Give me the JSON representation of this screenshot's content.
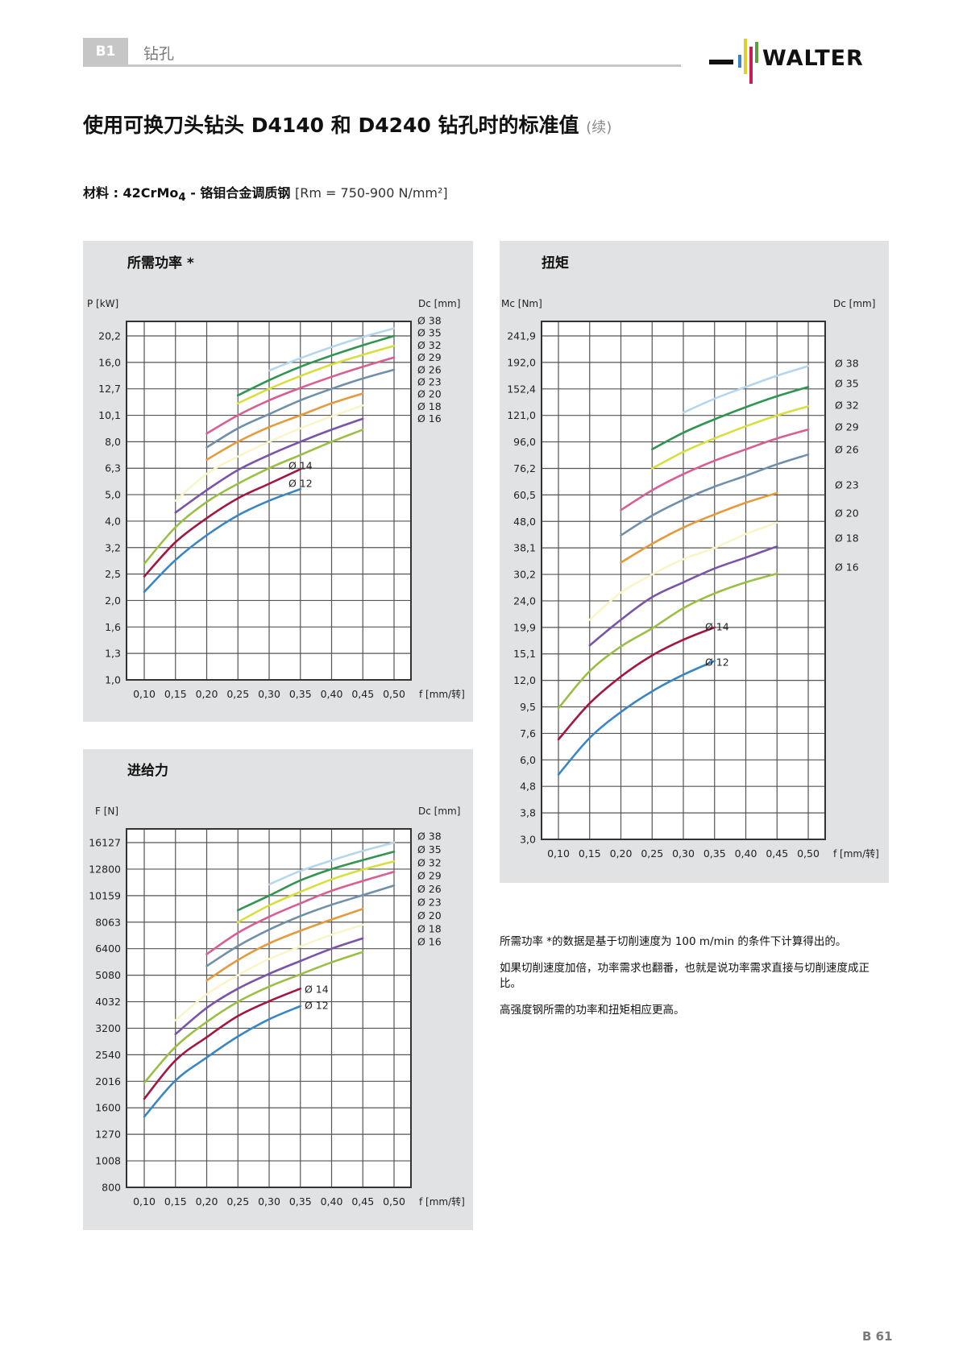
{
  "header": {
    "section_code": "B1",
    "section_name": "钻孔",
    "brand": "WALTER"
  },
  "page": {
    "title": "使用可换刀头钻头 D4140 和 D4240 钻孔时的标准值",
    "title_suffix": "(续)",
    "material_label": "材料 : 42CrMo",
    "material_sub": "4",
    "material_desc": " - 铬钼合金调质钢 ",
    "material_rm": "[Rm = 750-900 N/mm²]",
    "page_number": "B 61"
  },
  "notes": [
    "所需功率 *的数据是基于切削速度为 100 m/min 的条件下计算得出的。",
    "如果切削速度加倍，功率需求也翻番，也就是说功率需求直接与切削速度成正比。",
    "高强度钢所需的功率和扭矩相应更高。"
  ],
  "series_colors": {
    "12": "#3a86c4",
    "14": "#a3173f",
    "16": "#9bbf45",
    "18": "#f8f6c8",
    "20": "#7a54a8",
    "23": "#e59a3c",
    "26": "#6f8fab",
    "29": "#d95e94",
    "32": "#d8df3c",
    "35": "#2f9550",
    "38": "#b6d6ee"
  },
  "chart_data": [
    {
      "id": "power",
      "type": "line",
      "title": "所需功率 *",
      "ylabel": "P [kW]",
      "y2label": "Dc [mm]",
      "xlabel": "f [mm/转]",
      "x_ticks": [
        "0,10",
        "0,15",
        "0,20",
        "0,25",
        "0,30",
        "0,35",
        "0,40",
        "0,45",
        "0,50"
      ],
      "y_ticks": [
        "20,2",
        "16,0",
        "12,7",
        "10,1",
        "8,0",
        "6,3",
        "5,0",
        "4,0",
        "3,2",
        "2,5",
        "2,0",
        "1,6",
        "1,3",
        "1,0"
      ],
      "y_tick_values": [
        20.2,
        16.0,
        12.7,
        10.1,
        8.0,
        6.3,
        5.0,
        4.0,
        3.2,
        2.5,
        2.0,
        1.6,
        1.3,
        1.0
      ],
      "y_scale": "log",
      "grid": true,
      "legend": [
        "Ø 38",
        "Ø 35",
        "Ø 32",
        "Ø 29",
        "Ø 26",
        "Ø 23",
        "Ø 20",
        "Ø 18",
        "Ø 16"
      ],
      "inline_labels": [
        "Ø 14",
        "Ø 12"
      ],
      "series": [
        {
          "name": "Ø 12",
          "dc": "12",
          "x": [
            0.1,
            0.15,
            0.2,
            0.25,
            0.3,
            0.35
          ],
          "values": [
            2.15,
            2.85,
            3.55,
            4.2,
            4.75,
            5.25
          ]
        },
        {
          "name": "Ø 14",
          "dc": "14",
          "x": [
            0.1,
            0.15,
            0.2,
            0.25,
            0.3,
            0.35
          ],
          "values": [
            2.45,
            3.35,
            4.1,
            4.85,
            5.5,
            6.25
          ]
        },
        {
          "name": "Ø 16",
          "dc": "16",
          "x": [
            0.1,
            0.15,
            0.2,
            0.25,
            0.3,
            0.35,
            0.4,
            0.45
          ],
          "values": [
            2.75,
            3.8,
            4.7,
            5.5,
            6.3,
            7.1,
            8.0,
            8.9
          ]
        },
        {
          "name": "Ø 18",
          "dc": "18",
          "x": [
            0.15,
            0.2,
            0.25,
            0.3,
            0.35,
            0.4,
            0.45
          ],
          "values": [
            4.75,
            6.0,
            7.0,
            8.0,
            9.0,
            10.0,
            11.0
          ]
        },
        {
          "name": "Ø 20",
          "dc": "20",
          "x": [
            0.15,
            0.2,
            0.25,
            0.3,
            0.35,
            0.4,
            0.45
          ],
          "values": [
            4.3,
            5.2,
            6.2,
            7.1,
            8.0,
            8.9,
            9.8
          ]
        },
        {
          "name": "Ø 23",
          "dc": "23",
          "x": [
            0.2,
            0.25,
            0.3,
            0.35,
            0.4,
            0.45
          ],
          "values": [
            6.8,
            8.0,
            9.1,
            10.1,
            11.2,
            12.2
          ]
        },
        {
          "name": "Ø 26",
          "dc": "26",
          "x": [
            0.2,
            0.25,
            0.3,
            0.35,
            0.4,
            0.45,
            0.5
          ],
          "values": [
            7.6,
            9.0,
            10.2,
            11.5,
            12.7,
            13.9,
            15.0
          ]
        },
        {
          "name": "Ø 29",
          "dc": "29",
          "x": [
            0.2,
            0.25,
            0.3,
            0.35,
            0.4,
            0.45,
            0.5
          ],
          "values": [
            8.6,
            10.1,
            11.5,
            12.8,
            14.1,
            15.4,
            16.7
          ]
        },
        {
          "name": "Ø 32",
          "dc": "32",
          "x": [
            0.25,
            0.3,
            0.35,
            0.4,
            0.45,
            0.5
          ],
          "values": [
            11.2,
            12.7,
            14.2,
            15.7,
            17.1,
            18.5
          ]
        },
        {
          "name": "Ø 35",
          "dc": "35",
          "x": [
            0.25,
            0.3,
            0.35,
            0.4,
            0.45,
            0.5
          ],
          "values": [
            12.0,
            13.7,
            15.4,
            17.0,
            18.6,
            20.2
          ]
        },
        {
          "name": "Ø 38",
          "dc": "38",
          "x": [
            0.3,
            0.35,
            0.4,
            0.45,
            0.5
          ],
          "values": [
            14.9,
            16.6,
            18.3,
            20.0,
            21.6
          ]
        }
      ]
    },
    {
      "id": "torque",
      "type": "line",
      "title": "扭矩",
      "ylabel": "Mc [Nm]",
      "y2label": "Dc [mm]",
      "xlabel": "f [mm/转]",
      "x_ticks": [
        "0,10",
        "0,15",
        "0,20",
        "0,25",
        "0,30",
        "0,35",
        "0,40",
        "0,45",
        "0,50"
      ],
      "y_ticks": [
        "241,9",
        "192,0",
        "152,4",
        "121,0",
        "96,0",
        "76,2",
        "60,5",
        "48,0",
        "38,1",
        "30,2",
        "24,0",
        "19,9",
        "15,1",
        "12,0",
        "9,5",
        "7,6",
        "6,0",
        "4,8",
        "3,8",
        "3,0"
      ],
      "y_tick_values": [
        241.9,
        192.0,
        152.4,
        121.0,
        96.0,
        76.2,
        60.5,
        48.0,
        38.1,
        30.2,
        24.0,
        19.9,
        15.1,
        12.0,
        9.5,
        7.6,
        6.0,
        4.8,
        3.8,
        3.0
      ],
      "y_scale": "log",
      "grid": true,
      "legend": [
        "Ø 38",
        "Ø 35",
        "Ø 32",
        "Ø 29",
        "Ø 26",
        "Ø 23",
        "Ø 20",
        "Ø 18",
        "Ø 16"
      ],
      "legend_y": [
        451,
        476,
        503,
        530,
        558,
        602,
        637,
        668,
        704
      ],
      "inline_labels": [
        "Ø 14",
        "Ø 12"
      ],
      "series": [
        {
          "name": "Ø 12",
          "dc": "12",
          "x": [
            0.1,
            0.15,
            0.2,
            0.25,
            0.3,
            0.35
          ],
          "values": [
            5.3,
            7.3,
            9.1,
            10.9,
            12.6,
            14.2
          ]
        },
        {
          "name": "Ø 14",
          "dc": "14",
          "x": [
            0.1,
            0.15,
            0.2,
            0.25,
            0.3,
            0.35
          ],
          "values": [
            7.2,
            9.8,
            12.4,
            14.9,
            17.5,
            19.9
          ]
        },
        {
          "name": "Ø 16",
          "dc": "16",
          "x": [
            0.1,
            0.15,
            0.2,
            0.25,
            0.3,
            0.35,
            0.4,
            0.45
          ],
          "values": [
            9.4,
            13.0,
            16.3,
            19.7,
            22.8,
            25.6,
            28.2,
            30.4
          ]
        },
        {
          "name": "Ø 18",
          "dc": "18",
          "x": [
            0.15,
            0.2,
            0.25,
            0.3,
            0.35,
            0.4,
            0.45
          ],
          "values": [
            21.0,
            25.8,
            30.2,
            34.5,
            38.1,
            43.0,
            47.5
          ]
        },
        {
          "name": "Ø 20",
          "dc": "20",
          "x": [
            0.15,
            0.2,
            0.25,
            0.3,
            0.35,
            0.4,
            0.45
          ],
          "values": [
            16.5,
            21.0,
            24.8,
            28.2,
            31.8,
            35.0,
            38.6
          ]
        },
        {
          "name": "Ø 23",
          "dc": "23",
          "x": [
            0.2,
            0.25,
            0.3,
            0.35,
            0.4,
            0.45
          ],
          "values": [
            33.5,
            39.5,
            45.5,
            51.0,
            56.5,
            61.5
          ]
        },
        {
          "name": "Ø 26",
          "dc": "26",
          "x": [
            0.2,
            0.25,
            0.3,
            0.35,
            0.4,
            0.45,
            0.5
          ],
          "values": [
            42.5,
            50.5,
            58.0,
            65.0,
            71.5,
            79.0,
            86.0
          ]
        },
        {
          "name": "Ø 29",
          "dc": "29",
          "x": [
            0.2,
            0.25,
            0.3,
            0.35,
            0.4,
            0.45,
            0.5
          ],
          "values": [
            53.0,
            63.0,
            72.5,
            81.5,
            90.0,
            99.0,
            107.0
          ]
        },
        {
          "name": "Ø 32",
          "dc": "32",
          "x": [
            0.25,
            0.3,
            0.35,
            0.4,
            0.45,
            0.5
          ],
          "values": [
            76.2,
            88.0,
            99.0,
            110.0,
            121.0,
            131.0
          ]
        },
        {
          "name": "Ø 35",
          "dc": "35",
          "x": [
            0.25,
            0.3,
            0.35,
            0.4,
            0.45,
            0.5
          ],
          "values": [
            90.0,
            104.0,
            117.0,
            130.0,
            143.0,
            155.0
          ]
        },
        {
          "name": "Ø 38",
          "dc": "38",
          "x": [
            0.3,
            0.35,
            0.4,
            0.45,
            0.5
          ],
          "values": [
            124.0,
            140.0,
            155.0,
            171.0,
            186.0
          ]
        }
      ]
    },
    {
      "id": "feed-force",
      "type": "line",
      "title": "进给力",
      "ylabel": "F [N]",
      "y2label": "Dc [mm]",
      "xlabel": "f [mm/转]",
      "x_ticks": [
        "0,10",
        "0,15",
        "0,20",
        "0,25",
        "0,30",
        "0,35",
        "0,40",
        "0,45",
        "0,50"
      ],
      "y_ticks": [
        "16127",
        "12800",
        "10159",
        "8063",
        "6400",
        "5080",
        "4032",
        "3200",
        "2540",
        "2016",
        "1600",
        "1270",
        "1008",
        "800"
      ],
      "y_tick_values": [
        16127,
        12800,
        10159,
        8063,
        6400,
        5080,
        4032,
        3200,
        2540,
        2016,
        1600,
        1270,
        1008,
        800
      ],
      "y_scale": "log",
      "grid": true,
      "legend": [
        "Ø 38",
        "Ø 35",
        "Ø 32",
        "Ø 29",
        "Ø 26",
        "Ø 23",
        "Ø 20",
        "Ø 18",
        "Ø 16"
      ],
      "inline_labels": [
        "Ø 14",
        "Ø 12"
      ],
      "series": [
        {
          "name": "Ø 12",
          "dc": "12",
          "x": [
            0.1,
            0.15,
            0.2,
            0.25,
            0.3,
            0.35
          ],
          "values": [
            1480,
            2030,
            2480,
            2980,
            3460,
            3880
          ]
        },
        {
          "name": "Ø 14",
          "dc": "14",
          "x": [
            0.1,
            0.15,
            0.2,
            0.25,
            0.3,
            0.35
          ],
          "values": [
            1730,
            2420,
            2960,
            3560,
            4050,
            4520
          ]
        },
        {
          "name": "Ø 16",
          "dc": "16",
          "x": [
            0.1,
            0.15,
            0.2,
            0.25,
            0.3,
            0.35,
            0.4,
            0.45
          ],
          "values": [
            1990,
            2720,
            3380,
            4030,
            4600,
            5120,
            5680,
            6220
          ]
        },
        {
          "name": "Ø 18",
          "dc": "18",
          "x": [
            0.15,
            0.2,
            0.25,
            0.3,
            0.35,
            0.4,
            0.45
          ],
          "values": [
            3430,
            4300,
            5080,
            5850,
            6520,
            7230,
            7880
          ]
        },
        {
          "name": "Ø 20",
          "dc": "20",
          "x": [
            0.15,
            0.2,
            0.25,
            0.3,
            0.35,
            0.4,
            0.45
          ],
          "values": [
            3040,
            3820,
            4520,
            5140,
            5750,
            6400,
            7000
          ]
        },
        {
          "name": "Ø 23",
          "dc": "23",
          "x": [
            0.2,
            0.25,
            0.3,
            0.35,
            0.4,
            0.45
          ],
          "values": [
            4850,
            5800,
            6700,
            7480,
            8250,
            9050
          ]
        },
        {
          "name": "Ø 26",
          "dc": "26",
          "x": [
            0.2,
            0.25,
            0.3,
            0.35,
            0.4,
            0.45,
            0.5
          ],
          "values": [
            5500,
            6550,
            7550,
            8500,
            9380,
            10200,
            11100
          ]
        },
        {
          "name": "Ø 29",
          "dc": "29",
          "x": [
            0.2,
            0.25,
            0.3,
            0.35,
            0.4,
            0.45,
            0.5
          ],
          "values": [
            6100,
            7350,
            8450,
            9500,
            10600,
            11550,
            12500
          ]
        },
        {
          "name": "Ø 32",
          "dc": "32",
          "x": [
            0.25,
            0.3,
            0.35,
            0.4,
            0.45,
            0.5
          ],
          "values": [
            8063,
            9330,
            10500,
            11700,
            12750,
            13700
          ]
        },
        {
          "name": "Ø 35",
          "dc": "35",
          "x": [
            0.25,
            0.3,
            0.35,
            0.4,
            0.45,
            0.5
          ],
          "values": [
            8950,
            10159,
            11600,
            12800,
            13850,
            14900
          ]
        },
        {
          "name": "Ø 38",
          "dc": "38",
          "x": [
            0.3,
            0.35,
            0.4,
            0.45,
            0.5
          ],
          "values": [
            11200,
            12600,
            13800,
            15000,
            16127
          ]
        }
      ]
    }
  ]
}
